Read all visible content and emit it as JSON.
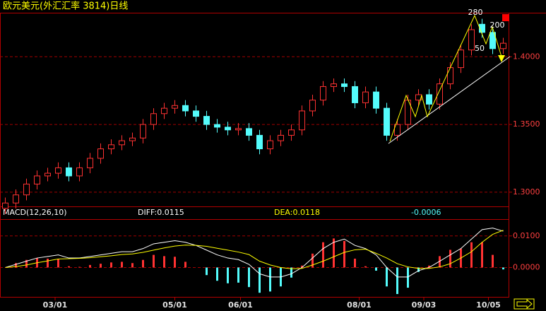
{
  "chart_data": [
    {
      "type": "candlestick",
      "title": "欧元美元(外汇汇率 3814)日线",
      "annotations": [
        "280",
        "200",
        "50"
      ],
      "up_color": "#ff3232",
      "down_color": "#54fcfc",
      "xlim": [
        -0.5,
        47.5
      ],
      "ylim": [
        1.2895,
        1.432
      ],
      "yticks": [
        {
          "value": 1.4,
          "label": "1.4000"
        },
        {
          "value": 1.35,
          "label": "1.3500"
        },
        {
          "value": 1.3,
          "label": "1.3000"
        }
      ],
      "grid": true,
      "open": [
        1.288,
        1.292,
        1.298,
        1.306,
        1.312,
        1.314,
        1.318,
        1.312,
        1.318,
        1.325,
        1.332,
        1.335,
        1.338,
        1.34,
        1.35,
        1.358,
        1.362,
        1.364,
        1.36,
        1.356,
        1.35,
        1.348,
        1.346,
        1.347,
        1.342,
        1.332,
        1.338,
        1.342,
        1.346,
        1.36,
        1.368,
        1.378,
        1.38,
        1.378,
        1.366,
        1.374,
        1.362,
        1.342,
        1.35,
        1.368,
        1.372,
        1.365,
        1.38,
        1.392,
        1.405,
        1.424,
        1.418,
        1.406
      ],
      "high": [
        1.296,
        1.302,
        1.31,
        1.316,
        1.318,
        1.322,
        1.322,
        1.322,
        1.329,
        1.336,
        1.339,
        1.342,
        1.344,
        1.354,
        1.362,
        1.366,
        1.368,
        1.368,
        1.364,
        1.36,
        1.354,
        1.352,
        1.351,
        1.351,
        1.346,
        1.342,
        1.346,
        1.35,
        1.364,
        1.372,
        1.382,
        1.384,
        1.384,
        1.382,
        1.378,
        1.378,
        1.366,
        1.354,
        1.372,
        1.376,
        1.376,
        1.384,
        1.396,
        1.409,
        1.424,
        1.428,
        1.422,
        1.414
      ],
      "low": [
        1.284,
        1.288,
        1.294,
        1.302,
        1.308,
        1.31,
        1.308,
        1.308,
        1.314,
        1.321,
        1.328,
        1.331,
        1.334,
        1.336,
        1.346,
        1.354,
        1.358,
        1.356,
        1.352,
        1.346,
        1.344,
        1.342,
        1.342,
        1.338,
        1.328,
        1.328,
        1.334,
        1.338,
        1.342,
        1.356,
        1.364,
        1.374,
        1.374,
        1.362,
        1.362,
        1.358,
        1.338,
        1.338,
        1.346,
        1.364,
        1.361,
        1.361,
        1.376,
        1.388,
        1.401,
        1.414,
        1.402,
        1.402
      ],
      "close": [
        1.292,
        1.298,
        1.306,
        1.312,
        1.314,
        1.318,
        1.312,
        1.318,
        1.325,
        1.332,
        1.335,
        1.338,
        1.34,
        1.35,
        1.358,
        1.362,
        1.364,
        1.36,
        1.356,
        1.35,
        1.348,
        1.346,
        1.347,
        1.342,
        1.332,
        1.338,
        1.342,
        1.346,
        1.36,
        1.368,
        1.378,
        1.38,
        1.378,
        1.366,
        1.374,
        1.362,
        1.342,
        1.35,
        1.368,
        1.372,
        1.365,
        1.38,
        1.392,
        1.405,
        1.42,
        1.418,
        1.406,
        1.41
      ]
    },
    {
      "type": "macd",
      "title": "MACD(12,26,10)",
      "diff_label": "DIFF:0.0115",
      "dea_label": "DEA:0.0118",
      "macd_label": "-0.0006",
      "xlim": [
        -0.5,
        47.5
      ],
      "xticks": [
        {
          "value": 4.7,
          "label": "03/01"
        },
        {
          "value": 16.0,
          "label": "05/01"
        },
        {
          "value": 22.2,
          "label": "06/01"
        },
        {
          "value": 33.4,
          "label": "08/01"
        },
        {
          "value": 39.5,
          "label": "09/03"
        },
        {
          "value": 45.6,
          "label": "10/05"
        }
      ],
      "ylim": [
        -0.0093,
        0.0151
      ],
      "yticks": [
        {
          "value": 0.01,
          "label": "0.0100"
        },
        {
          "value": 0,
          "label": "0.0000"
        }
      ],
      "grid": true,
      "series": [
        {
          "name": "DIFF",
          "color": "#ffffff",
          "values": [
            0,
            0.001,
            0.002,
            0.003,
            0.0035,
            0.004,
            0.003,
            0.003,
            0.0035,
            0.004,
            0.0045,
            0.005,
            0.005,
            0.006,
            0.0075,
            0.008,
            0.0085,
            0.008,
            0.007,
            0.0055,
            0.004,
            0.003,
            0.0025,
            0.001,
            -0.002,
            -0.003,
            -0.003,
            -0.002,
            0,
            0.003,
            0.006,
            0.008,
            0.009,
            0.007,
            0.006,
            0.004,
            0,
            -0.003,
            -0.003,
            -0.001,
            0,
            0.002,
            0.004,
            0.006,
            0.009,
            0.012,
            0.0125,
            0.0115
          ]
        },
        {
          "name": "DEA",
          "color": "#ffff00",
          "values": [
            0,
            0.0003,
            0.0008,
            0.0015,
            0.0021,
            0.0027,
            0.0028,
            0.0029,
            0.0031,
            0.0034,
            0.0037,
            0.0041,
            0.0043,
            0.0048,
            0.0055,
            0.0062,
            0.0068,
            0.0071,
            0.007,
            0.0067,
            0.0061,
            0.0055,
            0.0049,
            0.0041,
            0.002,
            0.0008,
            0,
            -0.0004,
            -0.0003,
            0.0008,
            0.002,
            0.0034,
            0.0048,
            0.0056,
            0.0058,
            0.0045,
            0.003,
            0.0012,
            0.0002,
            -0.0003,
            -0.0003,
            0.0002,
            0.0012,
            0.003,
            0.005,
            0.008,
            0.0105,
            0.0118
          ]
        }
      ],
      "hist": [
        0,
        0.0014,
        0.0024,
        0.003,
        0.0028,
        0.0026,
        0.0004,
        0.0002,
        0.0008,
        0.0012,
        0.0016,
        0.0018,
        0.0014,
        0.0024,
        0.004,
        0.0036,
        0.0034,
        0.0018,
        0,
        -0.0024,
        -0.0042,
        -0.005,
        -0.0048,
        -0.0062,
        -0.008,
        -0.0076,
        -0.006,
        -0.0032,
        0.0006,
        0.0044,
        0.008,
        0.0092,
        0.0084,
        0.0028,
        0.0004,
        -0.001,
        -0.006,
        -0.0084,
        -0.0064,
        -0.0014,
        0.0006,
        0.0036,
        0.0056,
        0.006,
        0.008,
        0.008,
        0.004,
        -0.0006
      ]
    }
  ]
}
